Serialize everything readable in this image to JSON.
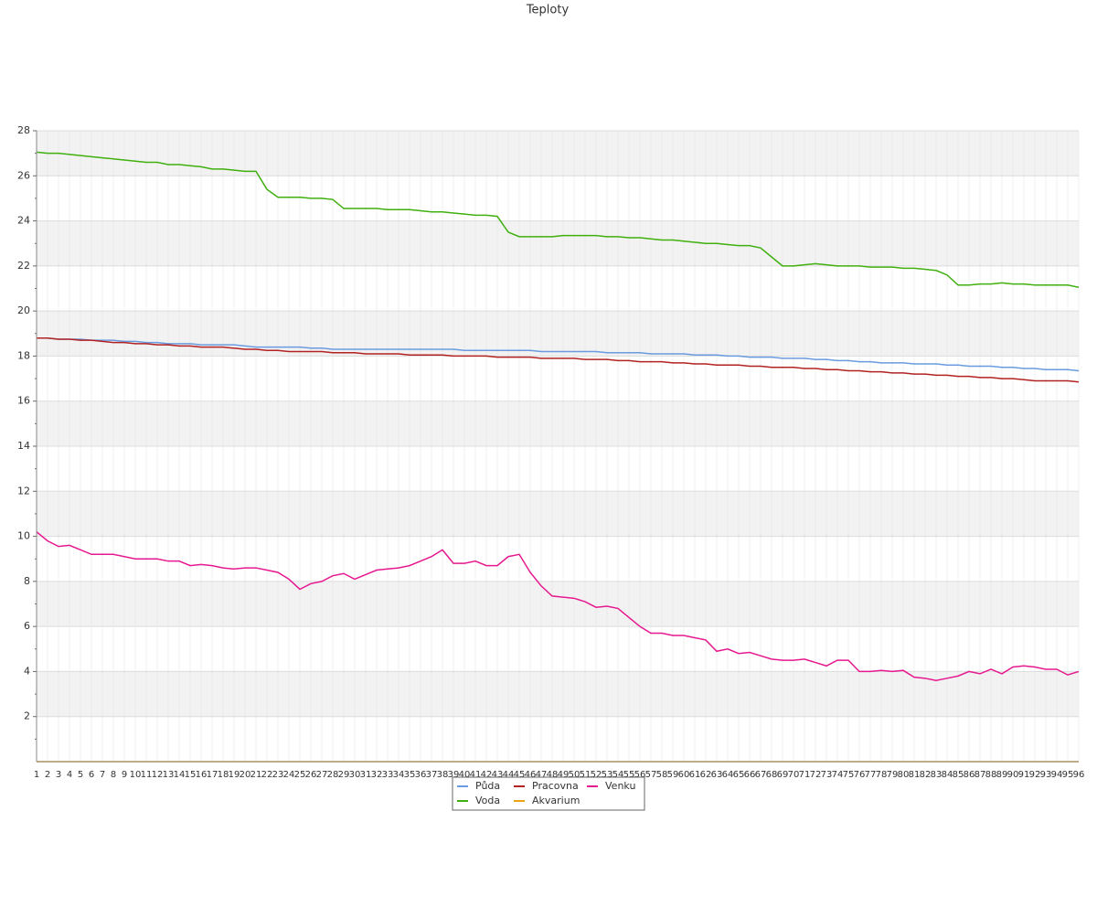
{
  "chart_data": {
    "type": "line",
    "title": "Teploty",
    "categories": [
      1,
      2,
      3,
      4,
      5,
      6,
      7,
      8,
      9,
      10,
      11,
      12,
      13,
      14,
      15,
      16,
      17,
      18,
      19,
      20,
      21,
      22,
      23,
      24,
      25,
      26,
      27,
      28,
      29,
      30,
      31,
      32,
      33,
      34,
      35,
      36,
      37,
      38,
      39,
      40,
      41,
      42,
      43,
      44,
      45,
      46,
      47,
      48,
      49,
      50,
      51,
      52,
      53,
      54,
      55,
      56,
      57,
      58,
      59,
      60,
      61,
      62,
      63,
      64,
      65,
      66,
      67,
      68,
      69,
      70,
      71,
      72,
      73,
      74,
      75,
      76,
      77,
      78,
      79,
      80,
      81,
      82,
      83,
      84,
      85,
      86,
      87,
      88,
      89,
      90,
      91,
      92,
      93,
      94,
      95,
      96
    ],
    "ylim": [
      0,
      28
    ],
    "yticks": [
      2,
      4,
      6,
      8,
      10,
      12,
      14,
      16,
      18,
      20,
      22,
      24,
      26,
      28
    ],
    "grid": true,
    "series": [
      {
        "name": "Půda",
        "color": "#6a9be0",
        "values": [
          18.8,
          18.8,
          18.75,
          18.75,
          18.75,
          18.7,
          18.7,
          18.7,
          18.65,
          18.65,
          18.6,
          18.6,
          18.55,
          18.55,
          18.55,
          18.5,
          18.5,
          18.5,
          18.5,
          18.45,
          18.4,
          18.4,
          18.4,
          18.4,
          18.4,
          18.35,
          18.35,
          18.3,
          18.3,
          18.3,
          18.3,
          18.3,
          18.3,
          18.3,
          18.3,
          18.3,
          18.3,
          18.3,
          18.3,
          18.25,
          18.25,
          18.25,
          18.25,
          18.25,
          18.25,
          18.25,
          18.2,
          18.2,
          18.2,
          18.2,
          18.2,
          18.2,
          18.15,
          18.15,
          18.15,
          18.15,
          18.1,
          18.1,
          18.1,
          18.1,
          18.05,
          18.05,
          18.05,
          18.0,
          18.0,
          17.95,
          17.95,
          17.95,
          17.9,
          17.9,
          17.9,
          17.85,
          17.85,
          17.8,
          17.8,
          17.75,
          17.75,
          17.7,
          17.7,
          17.7,
          17.65,
          17.65,
          17.65,
          17.6,
          17.6,
          17.55,
          17.55,
          17.55,
          17.5,
          17.5,
          17.45,
          17.45,
          17.4,
          17.4,
          17.4,
          17.35
        ]
      },
      {
        "name": "Pracovna",
        "color": "#b22222",
        "values": [
          18.8,
          18.8,
          18.75,
          18.75,
          18.7,
          18.7,
          18.65,
          18.6,
          18.6,
          18.55,
          18.55,
          18.5,
          18.5,
          18.45,
          18.45,
          18.4,
          18.4,
          18.4,
          18.35,
          18.3,
          18.3,
          18.25,
          18.25,
          18.2,
          18.2,
          18.2,
          18.2,
          18.15,
          18.15,
          18.15,
          18.1,
          18.1,
          18.1,
          18.1,
          18.05,
          18.05,
          18.05,
          18.05,
          18.0,
          18.0,
          18.0,
          18.0,
          17.95,
          17.95,
          17.95,
          17.95,
          17.9,
          17.9,
          17.9,
          17.9,
          17.85,
          17.85,
          17.85,
          17.8,
          17.8,
          17.75,
          17.75,
          17.75,
          17.7,
          17.7,
          17.65,
          17.65,
          17.6,
          17.6,
          17.6,
          17.55,
          17.55,
          17.5,
          17.5,
          17.5,
          17.45,
          17.45,
          17.4,
          17.4,
          17.35,
          17.35,
          17.3,
          17.3,
          17.25,
          17.25,
          17.2,
          17.2,
          17.15,
          17.15,
          17.1,
          17.1,
          17.05,
          17.05,
          17.0,
          17.0,
          16.95,
          16.9,
          16.9,
          16.9,
          16.9,
          16.85
        ]
      },
      {
        "name": "Venku",
        "color": "#e6188f",
        "values": [
          10.2,
          9.8,
          9.55,
          9.6,
          9.4,
          9.2,
          9.2,
          9.2,
          9.1,
          9.0,
          9.0,
          9.0,
          8.9,
          8.9,
          8.7,
          8.75,
          8.7,
          8.6,
          8.55,
          8.6,
          8.6,
          8.5,
          8.4,
          8.1,
          7.65,
          7.9,
          8.0,
          8.25,
          8.35,
          8.1,
          8.3,
          8.5,
          8.55,
          8.6,
          8.7,
          8.9,
          9.1,
          9.4,
          8.8,
          8.8,
          8.9,
          8.7,
          8.7,
          9.1,
          9.2,
          8.4,
          7.8,
          7.35,
          7.3,
          7.25,
          7.1,
          6.85,
          6.9,
          6.8,
          6.4,
          6.0,
          5.7,
          5.7,
          5.6,
          5.6,
          5.5,
          5.4,
          4.9,
          5.0,
          4.8,
          4.85,
          4.7,
          4.55,
          4.5,
          4.5,
          4.55,
          4.4,
          4.25,
          4.5,
          4.5,
          4.0,
          4.0,
          4.05,
          4.0,
          4.05,
          3.75,
          3.7,
          3.6,
          3.7,
          3.8,
          4.0,
          3.9,
          4.1,
          3.9,
          4.2,
          4.25,
          4.2,
          4.1,
          4.1,
          3.85,
          4.0
        ]
      },
      {
        "name": "Voda",
        "color": "#3fb00f",
        "values": [
          27.05,
          27.0,
          27.0,
          26.95,
          26.9,
          26.85,
          26.8,
          26.75,
          26.7,
          26.65,
          26.6,
          26.6,
          26.5,
          26.5,
          26.45,
          26.4,
          26.3,
          26.3,
          26.25,
          26.2,
          26.2,
          25.4,
          25.05,
          25.05,
          25.05,
          25.0,
          25.0,
          24.95,
          24.55,
          24.55,
          24.55,
          24.55,
          24.5,
          24.5,
          24.5,
          24.45,
          24.4,
          24.4,
          24.35,
          24.3,
          24.25,
          24.25,
          24.2,
          23.5,
          23.3,
          23.3,
          23.3,
          23.3,
          23.35,
          23.35,
          23.35,
          23.35,
          23.3,
          23.3,
          23.25,
          23.25,
          23.2,
          23.15,
          23.15,
          23.1,
          23.05,
          23.0,
          23.0,
          22.95,
          22.9,
          22.9,
          22.8,
          22.4,
          22.0,
          22.0,
          22.05,
          22.1,
          22.05,
          22.0,
          22.0,
          22.0,
          21.95,
          21.95,
          21.95,
          21.9,
          21.9,
          21.85,
          21.8,
          21.6,
          21.15,
          21.15,
          21.2,
          21.2,
          21.25,
          21.2,
          21.2,
          21.15,
          21.15,
          21.15,
          21.15,
          21.05
        ]
      },
      {
        "name": "Akvarium",
        "color": "#e8a317",
        "values": [
          0,
          0,
          0,
          0,
          0,
          0,
          0,
          0,
          0,
          0,
          0,
          0,
          0,
          0,
          0,
          0,
          0,
          0,
          0,
          0,
          0,
          0,
          0,
          0,
          0,
          0,
          0,
          0,
          0,
          0,
          0,
          0,
          0,
          0,
          0,
          0,
          0,
          0,
          0,
          0,
          0,
          0,
          0,
          0,
          0,
          0,
          0,
          0,
          0,
          0,
          0,
          0,
          0,
          0,
          0,
          0,
          0,
          0,
          0,
          0,
          0,
          0,
          0,
          0,
          0,
          0,
          0,
          0,
          0,
          0,
          0,
          0,
          0,
          0,
          0,
          0,
          0,
          0,
          0,
          0,
          0,
          0,
          0,
          0,
          0,
          0,
          0,
          0,
          0,
          0,
          0,
          0,
          0,
          0,
          0,
          0
        ]
      }
    ]
  }
}
